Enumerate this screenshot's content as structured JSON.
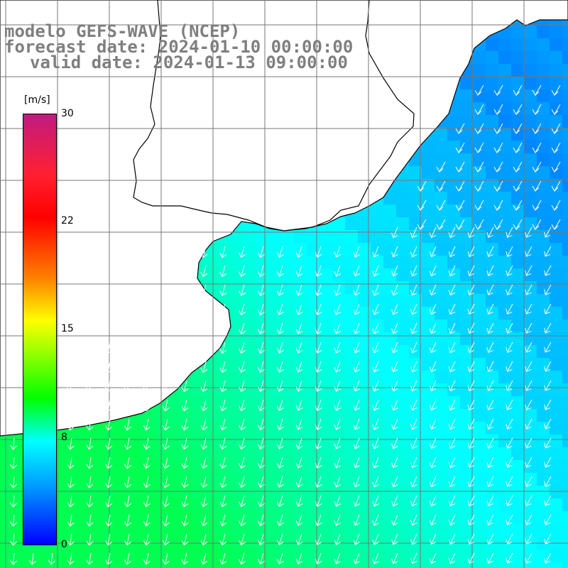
{
  "title": {
    "line1": "modelo GEFS-WAVE (NCEP)",
    "line2": "forecast date: 2024-01-10 00:00:00",
    "line3": "valid date: 2024-01-13 09:00:00"
  },
  "colorbar": {
    "units": "[m/s]",
    "ticks": [
      "30",
      "22",
      "15",
      "8",
      "0"
    ],
    "range": [
      0,
      30
    ],
    "colors": [
      "#0000ff",
      "#00a0ff",
      "#00ffff",
      "#00ff00",
      "#ffff00",
      "#ff8000",
      "#ff0000",
      "#c21a80"
    ]
  },
  "map": {
    "field": "wind speed",
    "grid_lines": true,
    "land_color": "#ffffff",
    "arrow_color": "#ffffff"
  }
}
